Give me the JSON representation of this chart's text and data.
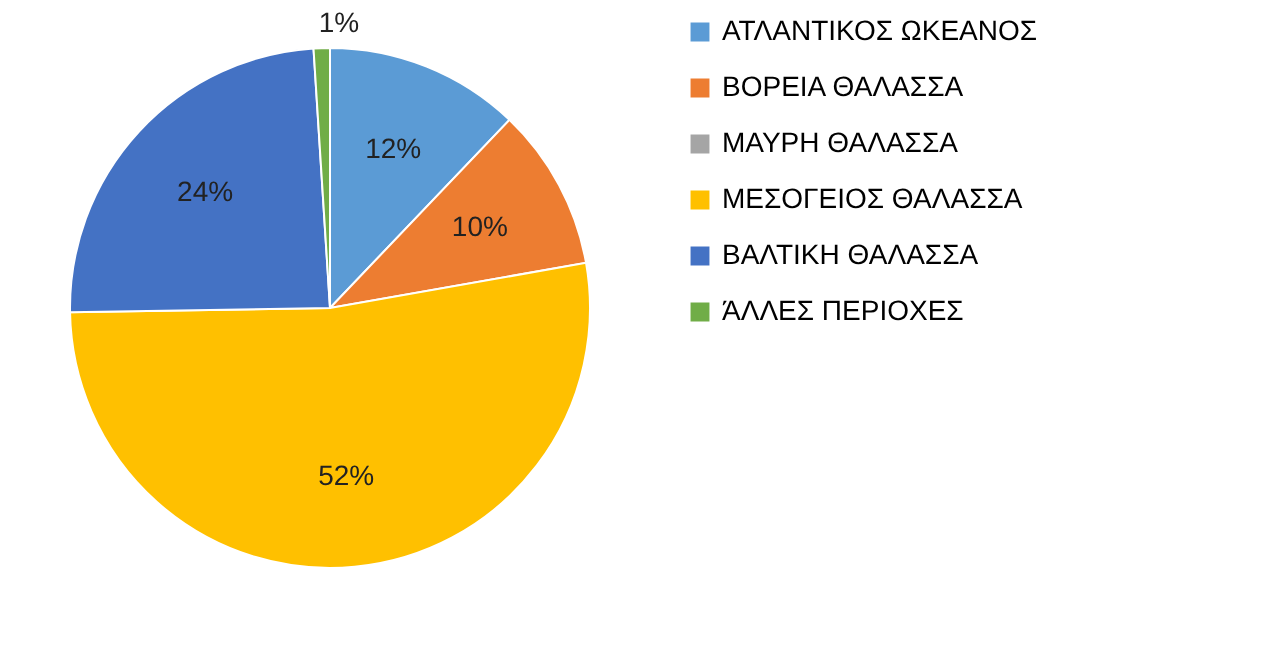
{
  "chart_data": {
    "type": "pie",
    "categories": [
      "ΑΤΛΑΝΤΙΚΟΣ ΩΚΕΑΝΟΣ",
      "ΒΟΡΕΙΑ ΘΑΛΑΣΣΑ",
      "ΜΑΥΡΗ ΘΑΛΑΣΣΑ",
      "ΜΕΣΟΓΕΙΟΣ ΘΑΛΑΣΣΑ",
      "ΒΑΛΤΙΚΗ ΘΑΛΑΣΣΑ",
      "ΆΛΛΕΣ ΠΕΡΙΟΧΕΣ"
    ],
    "values": [
      12,
      10,
      0,
      52,
      24,
      1
    ],
    "value_labels": [
      "12%",
      "10%",
      null,
      "52%",
      "24%",
      "1%"
    ],
    "colors": [
      "#5b9bd5",
      "#ed7d31",
      "#a5a5a5",
      "#ffc000",
      "#4472c4",
      "#70ad47"
    ],
    "legend": "right"
  }
}
